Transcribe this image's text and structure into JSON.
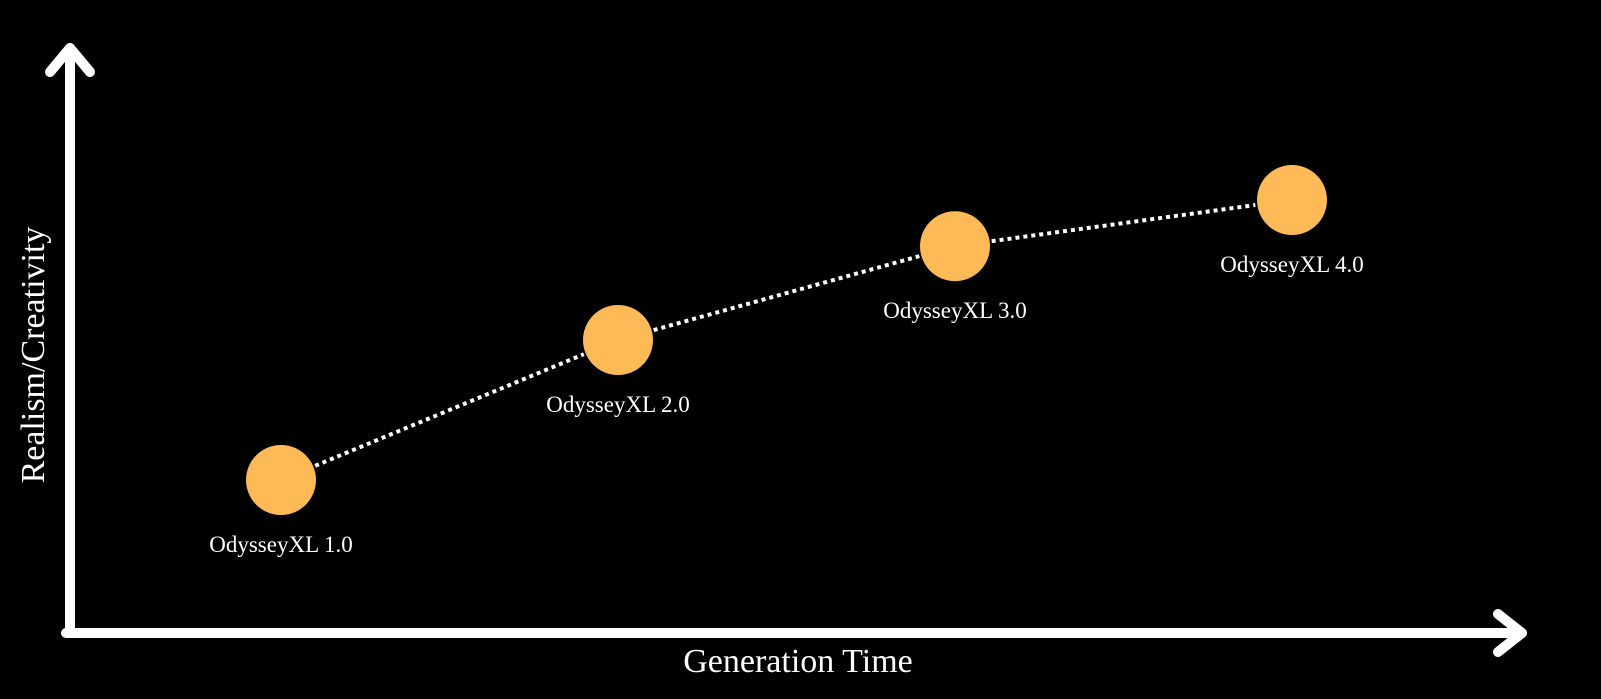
{
  "chart_data": {
    "type": "line",
    "xlabel": "Generation Time",
    "ylabel": "Realism/Creativity",
    "grid": false,
    "marker_color": "#FDBA57",
    "line_color": "#FFFFFF",
    "line_style": "dotted",
    "axis_color": "#FFFFFF",
    "background": "#000000",
    "points": [
      {
        "label": "OdysseyXL 1.0",
        "x": 1,
        "y": 1
      },
      {
        "label": "OdysseyXL 2.0",
        "x": 2,
        "y": 2
      },
      {
        "label": "OdysseyXL 3.0",
        "x": 3,
        "y": 2.67
      },
      {
        "label": "OdysseyXL 4.0",
        "x": 4,
        "y": 3
      }
    ]
  }
}
